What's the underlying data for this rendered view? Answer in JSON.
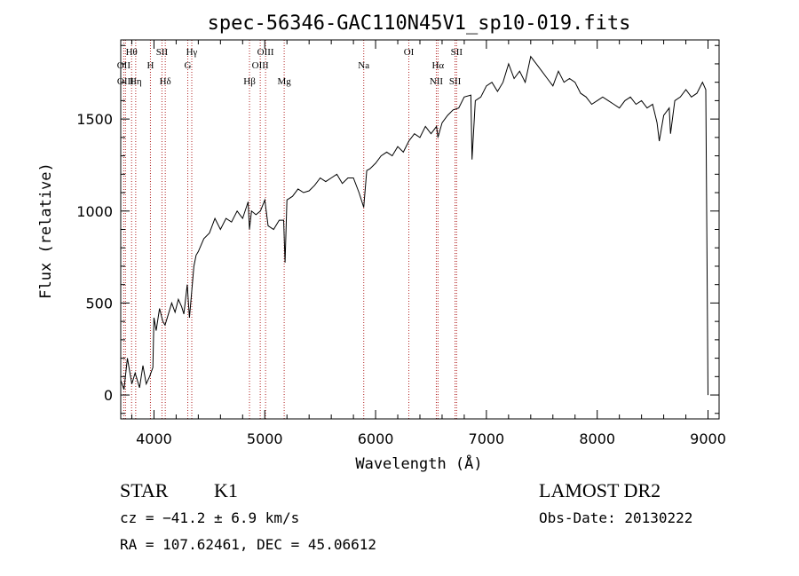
{
  "chart_data": {
    "type": "line",
    "title": "spec-56346-GAC110N45V1_sp10-019.fits",
    "xlabel": "Wavelength (Å)",
    "ylabel": "Flux (relative)",
    "xlim": [
      3700,
      9100
    ],
    "ylim": [
      -130,
      1930
    ],
    "x_ticks": [
      4000,
      5000,
      6000,
      7000,
      8000,
      9000
    ],
    "y_ticks": [
      0,
      500,
      1000,
      1500
    ],
    "grid": false,
    "line_color": "#000000",
    "marker_line_color": "#b22222",
    "series": [
      {
        "x": [
          3700,
          3730,
          3760,
          3800,
          3830,
          3870,
          3900,
          3930,
          3960,
          3990,
          4000,
          4020,
          4050,
          4080,
          4100,
          4130,
          4160,
          4190,
          4220,
          4250,
          4270,
          4300,
          4320,
          4340,
          4360,
          4380,
          4400,
          4450,
          4500,
          4550,
          4600,
          4650,
          4700,
          4750,
          4800,
          4850,
          4862,
          4880,
          4920,
          4960,
          5000,
          5030,
          5080,
          5130,
          5170,
          5183,
          5200,
          5250,
          5300,
          5350,
          5400,
          5450,
          5500,
          5550,
          5600,
          5650,
          5700,
          5750,
          5800,
          5850,
          5893,
          5920,
          5950,
          6000,
          6050,
          6100,
          6150,
          6200,
          6250,
          6300,
          6350,
          6400,
          6450,
          6500,
          6550,
          6563,
          6600,
          6650,
          6700,
          6750,
          6800,
          6860,
          6870,
          6900,
          6950,
          7000,
          7050,
          7100,
          7150,
          7200,
          7250,
          7300,
          7350,
          7400,
          7450,
          7500,
          7550,
          7600,
          7650,
          7700,
          7750,
          7800,
          7850,
          7900,
          7950,
          8000,
          8050,
          8100,
          8150,
          8200,
          8250,
          8300,
          8350,
          8400,
          8450,
          8500,
          8540,
          8560,
          8600,
          8650,
          8662,
          8700,
          8750,
          8800,
          8850,
          8900,
          8950,
          8980,
          9000
        ],
        "y": [
          80,
          30,
          200,
          60,
          120,
          40,
          160,
          60,
          100,
          150,
          420,
          350,
          470,
          400,
          380,
          440,
          500,
          450,
          520,
          480,
          440,
          600,
          420,
          560,
          700,
          760,
          780,
          850,
          880,
          960,
          900,
          960,
          940,
          1000,
          960,
          1050,
          900,
          1000,
          980,
          1000,
          1060,
          920,
          900,
          950,
          950,
          720,
          1060,
          1080,
          1120,
          1100,
          1110,
          1140,
          1180,
          1160,
          1180,
          1200,
          1150,
          1180,
          1180,
          1100,
          1020,
          1220,
          1230,
          1260,
          1300,
          1320,
          1300,
          1350,
          1320,
          1380,
          1420,
          1400,
          1460,
          1420,
          1460,
          1400,
          1480,
          1520,
          1550,
          1560,
          1620,
          1630,
          1280,
          1600,
          1620,
          1680,
          1700,
          1650,
          1700,
          1800,
          1720,
          1760,
          1700,
          1840,
          1800,
          1760,
          1720,
          1680,
          1760,
          1700,
          1720,
          1700,
          1640,
          1620,
          1580,
          1600,
          1620,
          1600,
          1580,
          1560,
          1600,
          1620,
          1580,
          1600,
          1560,
          1580,
          1480,
          1380,
          1520,
          1560,
          1420,
          1600,
          1620,
          1660,
          1620,
          1640,
          1700,
          1660,
          0
        ]
      }
    ],
    "lines": [
      {
        "label": "Hθ",
        "x": 3798,
        "row": 0
      },
      {
        "label": "OII",
        "x": 3727,
        "row": 1
      },
      {
        "label": "OIII",
        "x": 3743,
        "row": 2
      },
      {
        "label": "Hη",
        "x": 3835,
        "row": 2
      },
      {
        "label": "SII",
        "x": 4072,
        "row": 0
      },
      {
        "label": "H",
        "x": 3968,
        "row": 1
      },
      {
        "label": "Hδ",
        "x": 4102,
        "row": 2
      },
      {
        "label": "Hγ",
        "x": 4341,
        "row": 0
      },
      {
        "label": "G",
        "x": 4305,
        "row": 1
      },
      {
        "label": "OIII",
        "x": 5007,
        "row": 0
      },
      {
        "label": "OIII",
        "x": 4959,
        "row": 1
      },
      {
        "label": "Hβ",
        "x": 4862,
        "row": 2
      },
      {
        "label": "Mg",
        "x": 5175,
        "row": 2
      },
      {
        "label": "Na",
        "x": 5893,
        "row": 1
      },
      {
        "label": "OI",
        "x": 6300,
        "row": 0
      },
      {
        "label": "Hα",
        "x": 6563,
        "row": 1
      },
      {
        "label": "NII",
        "x": 6548,
        "row": 2
      },
      {
        "label": "SII",
        "x": 6731,
        "row": 0
      },
      {
        "label": "SII",
        "x": 6717,
        "row": 2
      }
    ]
  },
  "info": {
    "class_label": "STAR",
    "subclass_label": "K1",
    "survey_label": "LAMOST DR2",
    "redshift_label": "cz = −41.2 ± 6.9 km/s",
    "obs_date_label": "Obs-Date: 20130222",
    "coords_label": "RA = 107.62461, DEC =  45.06612"
  }
}
